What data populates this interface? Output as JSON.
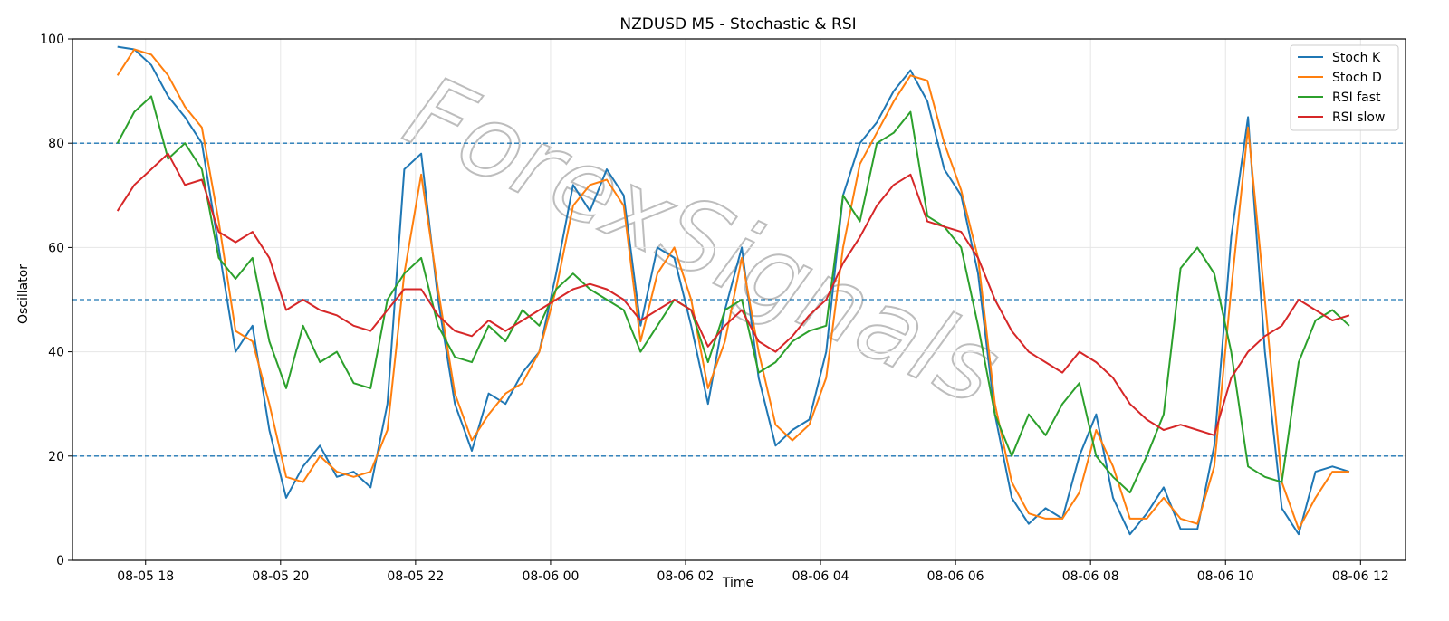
{
  "chart_data": {
    "type": "line",
    "title": "NZDUSD M5 - Stochastic & RSI",
    "xlabel": "Time",
    "ylabel": "Oscillator",
    "ylim": [
      0,
      100
    ],
    "xlim": [
      "08-05 16:55",
      "08-06 12:40"
    ],
    "x_ticks": [
      "08-05 18",
      "08-05 20",
      "08-05 22",
      "08-06 00",
      "08-06 02",
      "08-06 04",
      "08-06 06",
      "08-06 08",
      "08-06 10",
      "08-06 12"
    ],
    "y_ticks": [
      0,
      20,
      40,
      60,
      80,
      100
    ],
    "grid": true,
    "legend_position": "top-right",
    "watermark": "ForexSignals",
    "reference_lines": [
      {
        "value": 20,
        "style": "dashed",
        "color": "#1f77b4"
      },
      {
        "value": 50,
        "style": "dashed",
        "color": "#1f77b4"
      },
      {
        "value": 80,
        "style": "dashed",
        "color": "#1f77b4"
      }
    ],
    "x": [
      "08-05 17:35",
      "08-05 17:50",
      "08-05 18:05",
      "08-05 18:20",
      "08-05 18:35",
      "08-05 18:50",
      "08-05 19:05",
      "08-05 19:20",
      "08-05 19:35",
      "08-05 19:50",
      "08-05 20:05",
      "08-05 20:20",
      "08-05 20:35",
      "08-05 20:50",
      "08-05 21:05",
      "08-05 21:20",
      "08-05 21:35",
      "08-05 21:50",
      "08-05 22:05",
      "08-05 22:20",
      "08-05 22:35",
      "08-05 22:50",
      "08-05 23:05",
      "08-05 23:20",
      "08-05 23:35",
      "08-05 23:50",
      "08-06 00:05",
      "08-06 00:20",
      "08-06 00:35",
      "08-06 00:50",
      "08-06 01:05",
      "08-06 01:20",
      "08-06 01:35",
      "08-06 01:50",
      "08-06 02:05",
      "08-06 02:20",
      "08-06 02:35",
      "08-06 02:50",
      "08-06 03:05",
      "08-06 03:20",
      "08-06 03:35",
      "08-06 03:50",
      "08-06 04:05",
      "08-06 04:20",
      "08-06 04:35",
      "08-06 04:50",
      "08-06 05:05",
      "08-06 05:20",
      "08-06 05:35",
      "08-06 05:50",
      "08-06 06:05",
      "08-06 06:20",
      "08-06 06:35",
      "08-06 06:50",
      "08-06 07:05",
      "08-06 07:20",
      "08-06 07:35",
      "08-06 07:50",
      "08-06 08:05",
      "08-06 08:20",
      "08-06 08:35",
      "08-06 08:50",
      "08-06 09:05",
      "08-06 09:20",
      "08-06 09:35",
      "08-06 09:50",
      "08-06 10:05",
      "08-06 10:20",
      "08-06 10:35",
      "08-06 10:50",
      "08-06 11:05",
      "08-06 11:20",
      "08-06 11:35",
      "08-06 11:50"
    ],
    "series": [
      {
        "name": "Stoch K",
        "color": "#1f77b4",
        "values": [
          98.5,
          98,
          95,
          89,
          85,
          80,
          60,
          40,
          45,
          25,
          12,
          18,
          22,
          16,
          17,
          14,
          30,
          75,
          78,
          50,
          30,
          21,
          32,
          30,
          36,
          40,
          55,
          72,
          67,
          75,
          70,
          45,
          60,
          58,
          45,
          30,
          48,
          60,
          35,
          22,
          25,
          27,
          40,
          70,
          80,
          84,
          90,
          94,
          88,
          75,
          70,
          55,
          28,
          12,
          7,
          10,
          8,
          20,
          28,
          12,
          5,
          9,
          14,
          6,
          6,
          22,
          62,
          85,
          40,
          10,
          5,
          17,
          18,
          17
        ]
      },
      {
        "name": "Stoch D",
        "color": "#ff7f0e",
        "values": [
          93,
          98,
          97,
          93,
          87,
          83,
          65,
          44,
          42,
          30,
          16,
          15,
          20,
          17,
          16,
          17,
          25,
          55,
          74,
          52,
          32,
          23,
          28,
          32,
          34,
          40,
          52,
          68,
          72,
          73,
          68,
          42,
          55,
          60,
          50,
          33,
          42,
          58,
          40,
          26,
          23,
          26,
          35,
          60,
          76,
          82,
          88,
          93,
          92,
          80,
          71,
          58,
          30,
          15,
          9,
          8,
          8,
          13,
          25,
          18,
          8,
          8,
          12,
          8,
          7,
          18,
          52,
          83,
          50,
          15,
          6,
          12,
          17,
          17
        ]
      },
      {
        "name": "RSI fast",
        "color": "#2ca02c",
        "values": [
          80,
          86,
          89,
          77,
          80,
          75,
          58,
          54,
          58,
          42,
          33,
          45,
          38,
          40,
          34,
          33,
          50,
          55,
          58,
          45,
          39,
          38,
          45,
          42,
          48,
          45,
          52,
          55,
          52,
          50,
          48,
          40,
          45,
          50,
          48,
          38,
          48,
          50,
          36,
          38,
          42,
          44,
          45,
          70,
          65,
          80,
          82,
          86,
          66,
          64,
          60,
          45,
          28,
          20,
          28,
          24,
          30,
          34,
          20,
          16,
          13,
          20,
          28,
          56,
          60,
          55,
          40,
          18,
          16,
          15,
          38,
          46,
          48,
          45
        ]
      },
      {
        "name": "RSI slow",
        "color": "#d62728",
        "values": [
          67,
          72,
          75,
          78,
          72,
          73,
          63,
          61,
          63,
          58,
          48,
          50,
          48,
          47,
          45,
          44,
          48,
          52,
          52,
          47,
          44,
          43,
          46,
          44,
          46,
          48,
          50,
          52,
          53,
          52,
          50,
          46,
          48,
          50,
          48,
          41,
          45,
          48,
          42,
          40,
          43,
          47,
          50,
          57,
          62,
          68,
          72,
          74,
          65,
          64,
          63,
          58,
          50,
          44,
          40,
          38,
          36,
          40,
          38,
          35,
          30,
          27,
          25,
          26,
          25,
          24,
          35,
          40,
          43,
          45,
          50,
          48,
          46,
          47
        ]
      }
    ]
  }
}
